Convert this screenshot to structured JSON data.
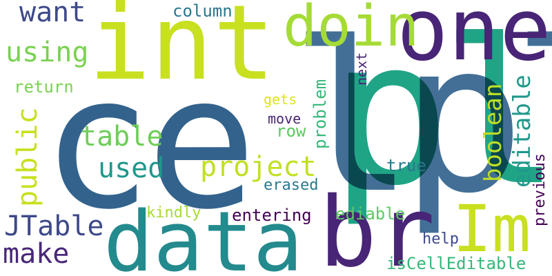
{
  "words": {
    "ce": {
      "text": "ce",
      "color": "#33638d"
    },
    "pl_teal": {
      "text": "pl",
      "color": "#20a486"
    },
    "lpl_blue": {
      "text": "lpl",
      "color": "#33638d"
    },
    "int": {
      "text": "int",
      "color": "#c8e020"
    },
    "one": {
      "text": "one",
      "color": "#482576"
    },
    "doin": {
      "text": "doin",
      "color": "#a5db36"
    },
    "data": {
      "text": "data",
      "color": "#238a8d"
    },
    "br": {
      "text": "br",
      "color": "#482576"
    },
    "im": {
      "text": "Im",
      "color": "#c8e020"
    },
    "want": {
      "text": "want",
      "color": "#3e4989"
    },
    "using": {
      "text": "using",
      "color": "#7ad151"
    },
    "return": {
      "text": "return",
      "color": "#7ad151"
    },
    "column": {
      "text": "column",
      "color": "#2a788e"
    },
    "gets": {
      "text": "gets",
      "color": "#dde318"
    },
    "table": {
      "text": "table",
      "color": "#6ece58"
    },
    "used": {
      "text": "used",
      "color": "#1f988b"
    },
    "project": {
      "text": "project",
      "color": "#c2df23"
    },
    "move": {
      "text": "move",
      "color": "#482576"
    },
    "row": {
      "text": "row",
      "color": "#5ec962"
    },
    "true": {
      "text": "true",
      "color": "#2a788e"
    },
    "erased": {
      "text": "erased",
      "color": "#2a788e"
    },
    "jtable": {
      "text": "JTable",
      "color": "#3e4989"
    },
    "make": {
      "text": "make",
      "color": "#482878"
    },
    "kindly": {
      "text": "kindly",
      "color": "#a5db36"
    },
    "entering": {
      "text": "entering",
      "color": "#440154"
    },
    "ediable": {
      "text": "ediable",
      "color": "#5ec962"
    },
    "help": {
      "text": "help",
      "color": "#3e4989"
    },
    "iscelleditable": {
      "text": "isCellEditable",
      "color": "#35b779"
    },
    "public": {
      "text": "public",
      "color": "#c8e020"
    },
    "problem": {
      "text": "problem",
      "color": "#35b779"
    },
    "next": {
      "text": "next",
      "color": "#482576"
    },
    "boolean": {
      "text": "boolean",
      "color": "#bddf26"
    },
    "editable": {
      "text": "editable",
      "color": "#1f988b"
    },
    "previous": {
      "text": "previous",
      "color": "#440154"
    }
  }
}
